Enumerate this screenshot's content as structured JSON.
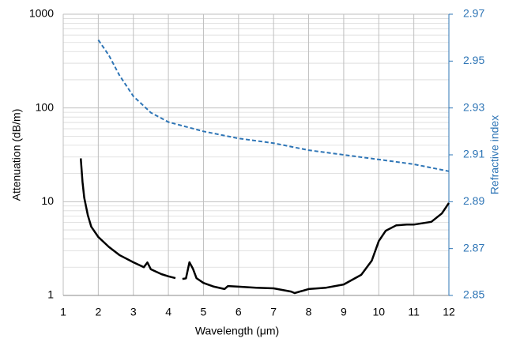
{
  "chart_data": {
    "type": "line",
    "xlabel": "Wavelength (μm)",
    "ylabel": "Attenuation (dB/m)",
    "y2label": "Refractive index",
    "xlim": [
      1,
      12
    ],
    "xticks": [
      1,
      2,
      3,
      4,
      5,
      6,
      7,
      8,
      9,
      10,
      11,
      12
    ],
    "ylim": [
      1,
      1000
    ],
    "yticks": [
      1,
      10,
      100,
      1000
    ],
    "yscale": "log",
    "y2lim": [
      2.85,
      2.97
    ],
    "y2ticks": [
      2.85,
      2.87,
      2.89,
      2.91,
      2.93,
      2.95,
      2.97
    ],
    "grid": true,
    "minor_grid": true,
    "series": [
      {
        "name": "Attenuation",
        "color": "#000000",
        "dashed": false,
        "x": [
          1.5,
          1.55,
          1.6,
          1.7,
          1.8,
          2.0,
          2.3,
          2.6,
          3.0,
          3.3,
          3.4,
          3.5,
          3.8,
          4.0,
          4.2,
          null,
          4.4,
          4.5,
          4.6,
          4.7,
          4.8,
          5.0,
          5.3,
          5.6,
          5.7,
          6.0,
          6.5,
          7.0,
          7.5,
          7.6,
          8.0,
          8.5,
          9.0,
          9.5,
          9.8,
          10.0,
          10.2,
          10.5,
          10.8,
          11.0,
          11.5,
          11.8,
          12.0
        ],
        "values": [
          29,
          16.3,
          11,
          7.2,
          5.4,
          4.2,
          3.3,
          2.7,
          2.26,
          2.0,
          2.25,
          1.9,
          1.69,
          1.6,
          1.53,
          null,
          1.5,
          1.52,
          2.26,
          1.93,
          1.53,
          1.36,
          1.24,
          1.17,
          1.26,
          1.24,
          1.21,
          1.19,
          1.1,
          1.06,
          1.17,
          1.21,
          1.31,
          1.66,
          2.35,
          3.8,
          4.9,
          5.6,
          5.7,
          5.7,
          6.1,
          7.5,
          9.7
        ]
      },
      {
        "name": "Refractive index",
        "color": "#2e75b6",
        "dashed": true,
        "axis": "y2",
        "x": [
          2.0,
          2.3,
          2.6,
          3.0,
          3.5,
          4.0,
          5.0,
          6.0,
          7.0,
          8.0,
          9.0,
          10.0,
          11.0,
          12.0
        ],
        "values": [
          2.959,
          2.9525,
          2.944,
          2.935,
          2.928,
          2.924,
          2.92,
          2.917,
          2.915,
          2.912,
          2.91,
          2.908,
          2.906,
          2.903
        ]
      }
    ]
  }
}
